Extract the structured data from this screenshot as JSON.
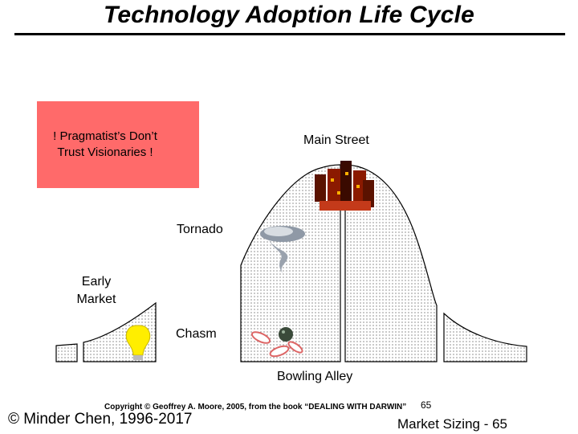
{
  "title": "Technology Adoption Life Cycle",
  "callout": {
    "line1": "! Pragmatist’s Don’t",
    "line2": "Trust Visionaries !"
  },
  "labels": {
    "main_street": "Main Street",
    "tornado": "Tornado",
    "early_market_line1": "Early",
    "early_market_line2": "Market",
    "chasm": "Chasm",
    "bowling_alley": "Bowling Alley"
  },
  "footer": {
    "copyright": "Copyright © Geoffrey A. Moore, 2005, from the book “DEALING WITH DARWIN”",
    "page_small": "65",
    "left": "© Minder Chen, 1996-2017",
    "right": "Market Sizing - 65"
  },
  "colors": {
    "callout_fill": "#ff6a6a",
    "curve_dots": "#444444",
    "bulb": "#ffee00",
    "city": "#8b1a00"
  },
  "icons": [
    "lightbulb-icon",
    "bowling-icon",
    "tornado-icon",
    "city-icon"
  ]
}
